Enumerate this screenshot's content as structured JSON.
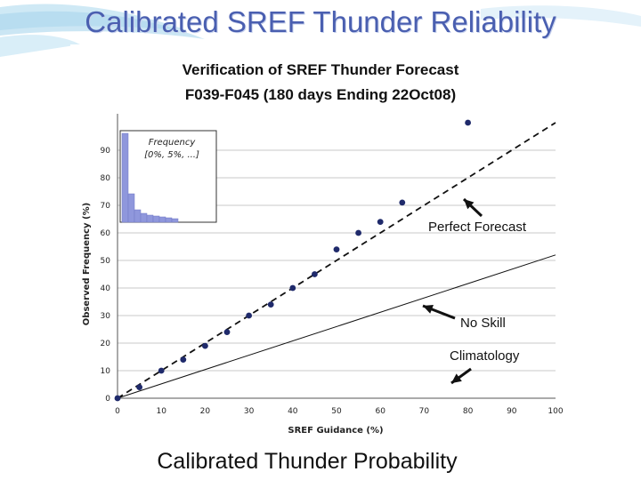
{
  "slide": {
    "title": "Calibrated SREF Thunder Reliability",
    "caption": "Calibrated Thunder Probability"
  },
  "colors": {
    "title": "#4a5fb0",
    "points": "#1f2a6b",
    "histogram": "#8f97dc",
    "grid": "#c8c8c8"
  },
  "chart_data": {
    "type": "scatter",
    "title_line1": "Verification of SREF Thunder Forecast",
    "title_line2": "F039-F045 (180 days Ending 22Oct08)",
    "xlabel": "SREF Guidance (%)",
    "ylabel": "Observed Frequency (%)",
    "xlim": [
      0,
      100
    ],
    "ylim": [
      0,
      100
    ],
    "xticks": [
      0,
      10,
      20,
      30,
      40,
      50,
      60,
      70,
      80,
      90,
      100
    ],
    "yticks": [
      0,
      10,
      20,
      30,
      40,
      50,
      60,
      70,
      80,
      90
    ],
    "grid": true,
    "series": [
      {
        "x": [
          0,
          5,
          10,
          15,
          20,
          25,
          30,
          35,
          40,
          45,
          50,
          55,
          60,
          65,
          80
        ],
        "y": [
          0,
          4,
          10,
          14,
          19,
          24,
          30,
          34,
          40,
          45,
          54,
          60,
          64,
          71,
          100
        ]
      }
    ],
    "reference_lines": [
      {
        "label": "Perfect Forecast",
        "style": "dashed",
        "x": [
          0,
          100
        ],
        "y": [
          0,
          100
        ]
      },
      {
        "label": "No Skill",
        "style": "solid",
        "x": [
          0,
          100
        ],
        "y": [
          0,
          52
        ]
      },
      {
        "label": "Climatology",
        "style": "none"
      }
    ],
    "inset_histogram": {
      "title_line1": "Frequency",
      "title_line2": "[0%, 5%, ...]",
      "values": [
        100,
        32,
        14,
        10,
        8,
        7,
        6,
        5,
        4
      ]
    }
  }
}
